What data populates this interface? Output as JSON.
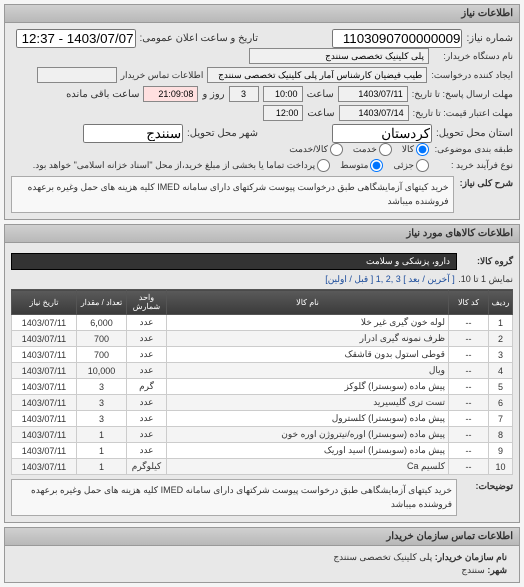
{
  "panels": {
    "info": "اطلاعات نیاز",
    "items": "اطلاعات کالاهای مورد نیاز",
    "contact": "اطلاعات تماس سازمان خریدار"
  },
  "labels": {
    "reqNo": "شماره نیاز:",
    "annDate": "تاریخ و ساعت اعلان عمومی:",
    "buyerOrg": "نام دستگاه خریدار:",
    "requester": "ایجاد کننده درخواست:",
    "buyerContact": "اطلاعات تماس خریدار",
    "deadline": "مهلت ارسال پاسخ: تا تاریخ:",
    "hourLbl": "ساعت",
    "remainLbl": "روز و",
    "remainSuffix": "ساعت باقی مانده",
    "validUntil": "مهلت اعتبار قیمت: تا تاریخ:",
    "deliveryProv": "استان محل تحویل:",
    "deliveryCity": "شهر محل تحویل:",
    "pkgType": "طبقه بندی موضوعی:",
    "bidType": "نوع فرآیند خرید :",
    "descTitle": "شرح کلی نیاز:",
    "catTitle": "گروه کالا:",
    "explTitle": "توضیحات:",
    "orgNameLbl": "نام سازمان خریدار:",
    "cityLbl": "شهر:"
  },
  "values": {
    "reqNo": "1103090700000009",
    "annDate": "1403/07/07 - 12:37",
    "buyerOrg": "پلی کلینیک تخصصی سنندج",
    "requester": "طیب فیضیان کارشناس آمار پلی کلینیک تخصصی سنندج",
    "deadlineDate": "1403/07/11",
    "deadlineHour": "10:00",
    "remainDays": "3",
    "remainTime": "21:09:08",
    "validDate": "1403/07/14",
    "validHour": "12:00",
    "province": "کردستان",
    "city": "سنندج",
    "orgName": "پلی  کلینیک تخصصی سنندج"
  },
  "radios": {
    "pkg": [
      {
        "label": "کالا",
        "checked": true
      },
      {
        "label": "خدمت",
        "checked": false
      },
      {
        "label": "کالا/خدمت",
        "checked": false
      }
    ],
    "bid": [
      {
        "label": "جزئی",
        "checked": false
      },
      {
        "label": "متوسط",
        "checked": true
      },
      {
        "label": "پرداخت تماما یا بخشی از مبلغ خرید،از محل \"اسناد خزانه اسلامی\" خواهد بود.",
        "checked": false
      }
    ]
  },
  "descText": "خرید کیتهای آزمایشگاهی طبق درخواست پیوست شرکتهای دارای سامانه IMED کلیه هزینه های حمل وغیره برعهده فروشنده میباشد",
  "catText": "دارو، پزشکی و سلامت",
  "explText": "خرید کیتهای آزمایشگاهی طبق درخواست پیوست شرکتهای دارای سامانه IMED کلیه هزینه های حمل وغیره برعهده فروشنده میباشد",
  "pager": {
    "summary": "نمایش 1 تا 10.",
    "links": [
      "[ آخرین / بعد ] 3 ,2 ,1 [ قبل / اولین]"
    ]
  },
  "table": {
    "headers": [
      "ردیف",
      "کد کالا",
      "نام کالا",
      "واحد شمارش",
      "تعداد / مقدار",
      "تاریخ نیاز"
    ],
    "rows": [
      {
        "idx": "1",
        "code": "--",
        "name": "لوله خون گیری غیر خلا",
        "unit": "عدد",
        "qty": "6,000",
        "date": "1403/07/11"
      },
      {
        "idx": "2",
        "code": "--",
        "name": "ظرف نمونه گیری ادرار",
        "unit": "عدد",
        "qty": "700",
        "date": "1403/07/11"
      },
      {
        "idx": "3",
        "code": "--",
        "name": "قوطی استول بدون قاشقک",
        "unit": "عدد",
        "qty": "700",
        "date": "1403/07/11"
      },
      {
        "idx": "4",
        "code": "--",
        "name": "ویال",
        "unit": "عدد",
        "qty": "10,000",
        "date": "1403/07/11"
      },
      {
        "idx": "5",
        "code": "--",
        "name": "پیش ماده (سوبسترا) گلوکز",
        "unit": "گرم",
        "qty": "3",
        "date": "1403/07/11"
      },
      {
        "idx": "6",
        "code": "--",
        "name": "تست تری گلیسیرید",
        "unit": "عدد",
        "qty": "3",
        "date": "1403/07/11"
      },
      {
        "idx": "7",
        "code": "--",
        "name": "پیش ماده (سوبسترا) کلسترول",
        "unit": "عدد",
        "qty": "3",
        "date": "1403/07/11"
      },
      {
        "idx": "8",
        "code": "--",
        "name": "پیش ماده (سوبسترا) اوره/نیتروژن اوره خون",
        "unit": "عدد",
        "qty": "1",
        "date": "1403/07/11"
      },
      {
        "idx": "9",
        "code": "--",
        "name": "پیش ماده (سوبسترا) اسید اوریک",
        "unit": "عدد",
        "qty": "1",
        "date": "1403/07/11"
      },
      {
        "idx": "10",
        "code": "--",
        "name": "کلسیم Ca",
        "unit": "کیلوگرم",
        "qty": "1",
        "date": "1403/07/11"
      }
    ]
  }
}
